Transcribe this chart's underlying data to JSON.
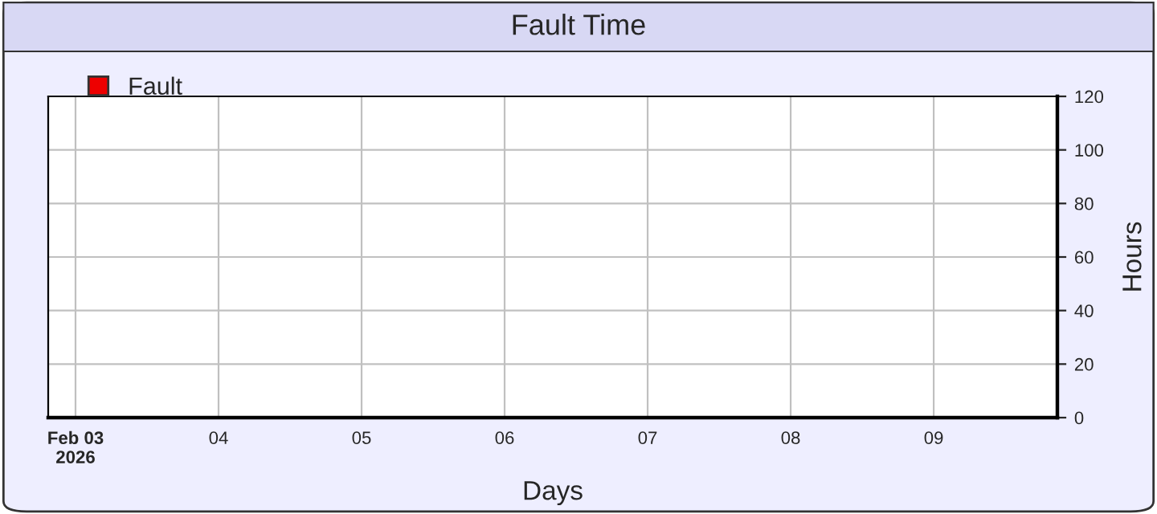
{
  "chart_data": {
    "type": "bar",
    "title": "Fault Time",
    "xlabel": "Days",
    "ylabel": "Hours",
    "x": [
      "2026-02-03",
      "2026-02-04",
      "2026-02-05",
      "2026-02-06",
      "2026-02-07",
      "2026-02-08",
      "2026-02-09"
    ],
    "series": [
      {
        "name": "Fault",
        "color": "#ee0000",
        "values": [
          0,
          0,
          0,
          0,
          0,
          0,
          0
        ]
      }
    ],
    "xlim": [
      "2026-02-02T19:25",
      "2026-02-09T20:45"
    ],
    "xticks": [
      {
        "value": "2026-02-03",
        "label": "Feb 03\n2026"
      },
      {
        "value": "2026-02-04",
        "label": "04"
      },
      {
        "value": "2026-02-05",
        "label": "05"
      },
      {
        "value": "2026-02-06",
        "label": "06"
      },
      {
        "value": "2026-02-07",
        "label": "07"
      },
      {
        "value": "2026-02-08",
        "label": "08"
      },
      {
        "value": "2026-02-09",
        "label": "09"
      }
    ],
    "ylim": [
      0,
      120
    ],
    "yticks": [
      0,
      20,
      40,
      60,
      80,
      100,
      120
    ],
    "grid": true,
    "legend": "top left"
  }
}
